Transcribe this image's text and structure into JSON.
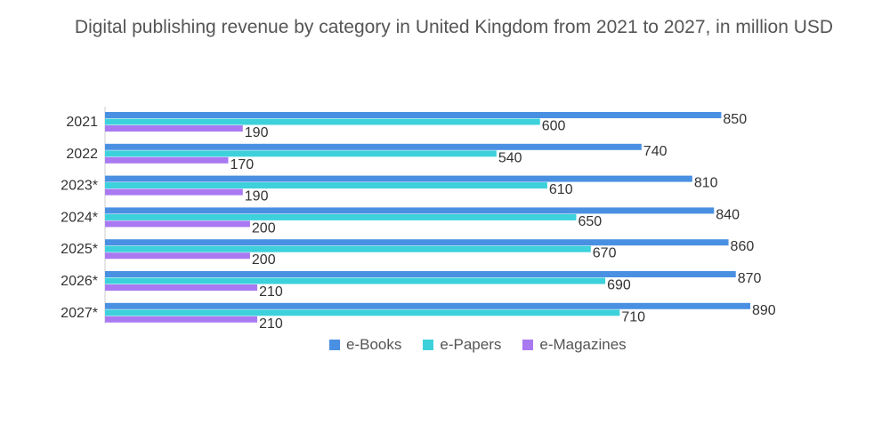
{
  "chart_data": {
    "type": "bar",
    "orientation": "horizontal",
    "title": "Digital publishing revenue by category in United Kingdom from 2021 to 2027, in million USD",
    "categories": [
      "2021",
      "2022",
      "2023*",
      "2024*",
      "2025*",
      "2026*",
      "2027*"
    ],
    "series": [
      {
        "name": "e-Books",
        "color": "#4a90e2",
        "values": [
          850,
          740,
          810,
          840,
          860,
          870,
          890
        ]
      },
      {
        "name": "e-Papers",
        "color": "#3dd1dc",
        "values": [
          600,
          540,
          610,
          650,
          670,
          690,
          710
        ]
      },
      {
        "name": "e-Magazines",
        "color": "#a979f2",
        "values": [
          190,
          170,
          190,
          200,
          200,
          210,
          210
        ]
      }
    ],
    "xlabel": "",
    "ylabel": "",
    "xlim": [
      0,
      890
    ],
    "grid": false,
    "legend": "bottom",
    "label_color": "#333333",
    "axis_color": "#cccccc"
  }
}
